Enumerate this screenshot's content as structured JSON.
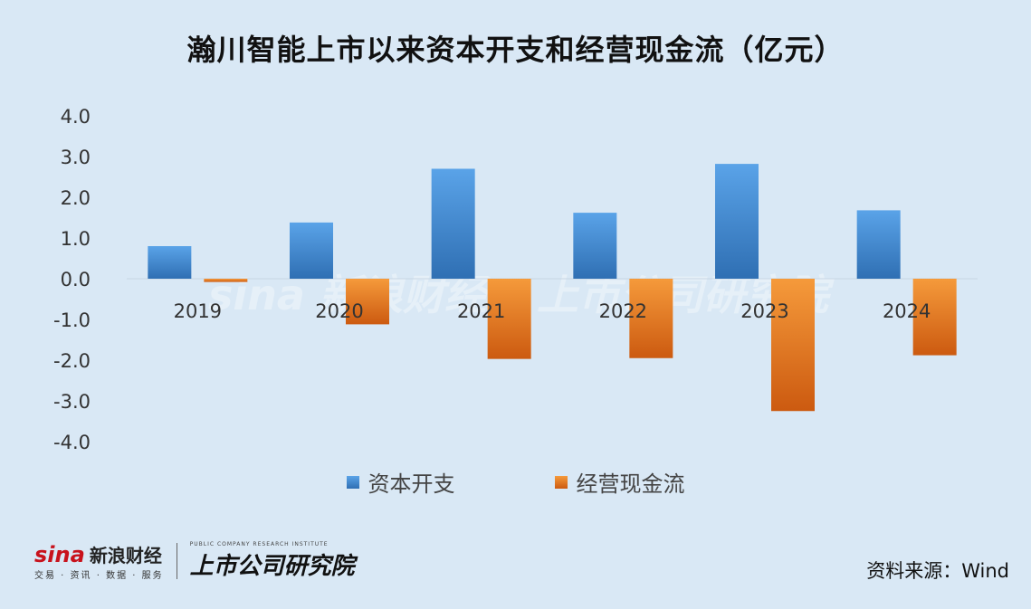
{
  "title": "瀚川智能上市以来资本开支和经营现金流（亿元）",
  "source_text": "资料来源：Wind",
  "legend": [
    {
      "label": "资本开支",
      "color": "#4a90d9"
    },
    {
      "label": "经营现金流",
      "color": "#e8731a"
    }
  ],
  "brand": {
    "sina_word": "sina",
    "sina_name": "新浪财经",
    "sina_tagline": "交易 · 资讯 · 数据 · 服务",
    "research_name": "上市公司研究院",
    "research_tagline": "PUBLIC COMPANY RESEARCH INSTITUTE"
  },
  "watermark": {
    "sina_word": "sina",
    "sina_name": "新浪财经",
    "research_name": "上市公司研究院"
  },
  "chart_data": {
    "type": "bar",
    "title": "瀚川智能上市以来资本开支和经营现金流（亿元）",
    "categories": [
      "2019",
      "2020",
      "2021",
      "2022",
      "2023",
      "2024"
    ],
    "series": [
      {
        "name": "资本开支",
        "values": [
          0.8,
          1.38,
          2.7,
          1.62,
          2.82,
          1.68
        ],
        "color": "#4a90d9"
      },
      {
        "name": "经营现金流",
        "values": [
          -0.08,
          -1.12,
          -1.97,
          -1.95,
          -3.25,
          -1.88
        ],
        "color": "#e8731a"
      }
    ],
    "ylim": [
      -4.0,
      4.0
    ],
    "yticks": [
      "4.0",
      "3.0",
      "2.0",
      "1.0",
      "0.0",
      "-1.0",
      "-2.0",
      "-3.0",
      "-4.0"
    ],
    "grid": false,
    "legend_position": "bottom"
  }
}
